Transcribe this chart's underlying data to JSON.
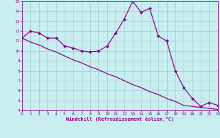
{
  "x": [
    0,
    1,
    2,
    3,
    4,
    5,
    6,
    7,
    8,
    9,
    10,
    11,
    12,
    13,
    14,
    15,
    16,
    17,
    18,
    19,
    20,
    21,
    22,
    23
  ],
  "y_curve": [
    11.3,
    12.0,
    11.8,
    11.3,
    11.3,
    10.5,
    10.3,
    10.0,
    9.9,
    10.0,
    10.5,
    11.8,
    13.2,
    15.0,
    13.9,
    14.3,
    11.5,
    11.0,
    8.0,
    6.3,
    5.2,
    4.4,
    4.8,
    4.5
  ],
  "y_trend": [
    11.3,
    10.9,
    10.6,
    10.2,
    9.9,
    9.5,
    9.1,
    8.8,
    8.4,
    8.1,
    7.7,
    7.4,
    7.0,
    6.6,
    6.3,
    5.9,
    5.6,
    5.2,
    4.9,
    4.5,
    4.4,
    4.3,
    4.2,
    4.1
  ],
  "xlabel": "Windchill (Refroidissement éolien,°C)",
  "xlim": [
    0,
    23
  ],
  "ylim": [
    4,
    15
  ],
  "yticks": [
    4,
    5,
    6,
    7,
    8,
    9,
    10,
    11,
    12,
    13,
    14,
    15
  ],
  "xticks": [
    0,
    1,
    2,
    3,
    4,
    5,
    6,
    7,
    8,
    9,
    10,
    11,
    12,
    13,
    14,
    15,
    16,
    17,
    18,
    19,
    20,
    21,
    22,
    23
  ],
  "line_color": "#8b008b",
  "bg_color": "#c8eef0",
  "grid_color": "#a0c8d0",
  "tick_color": "#8b008b",
  "xlabel_color": "#8b008b",
  "markersize": 2.0,
  "linewidth": 0.9
}
